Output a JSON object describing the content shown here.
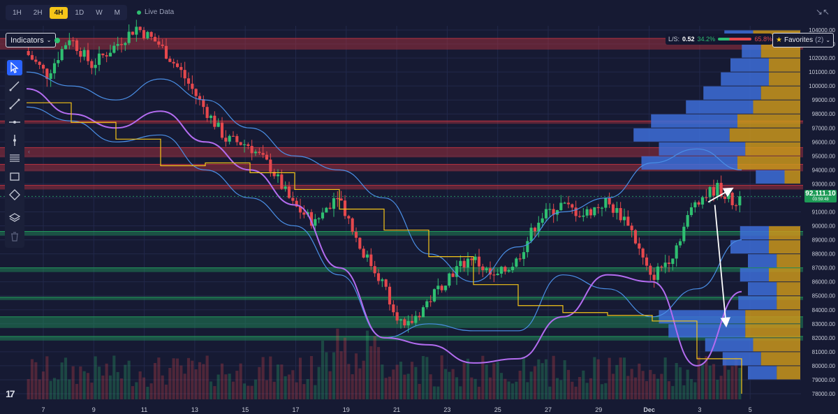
{
  "timeframes": {
    "items": [
      {
        "label": "1H"
      },
      {
        "label": "2H"
      },
      {
        "label": "4H",
        "active": true
      },
      {
        "label": "1D"
      },
      {
        "label": "W"
      },
      {
        "label": "M"
      }
    ],
    "live_label": "Live Data"
  },
  "indicators_label": "Indicators",
  "favorites": {
    "label": "Favorites",
    "count": "(2)"
  },
  "long_short": {
    "label": "L/S:",
    "ratio": "0.52",
    "long_pct": "34.2%",
    "short_pct": "65.8%"
  },
  "price_tag": {
    "price": "92,111.10",
    "timer": "03:59:48"
  },
  "tools": [
    "cursor-icon",
    "trendline-icon",
    "ray-icon",
    "horizontal-line-icon",
    "vertical-line-icon",
    "fib-icon",
    "rectangle-icon",
    "measure-icon",
    "layers-icon",
    "trash-icon"
  ],
  "colors": {
    "background": "#161a33",
    "up": "#2fbf71",
    "down": "#e5484d",
    "bollinger": "#4a8fe6",
    "ma": "#b36cf0",
    "step": "#f5c518",
    "profile_blue": "#3d6fd9",
    "profile_gold": "#c9961c"
  },
  "chart_data": {
    "type": "candlestick",
    "x_ticks": [
      "7",
      "9",
      "11",
      "13",
      "15",
      "17",
      "19",
      "21",
      "23",
      "25",
      "27",
      "29",
      "Dec",
      "3",
      "5"
    ],
    "y_ticks": [
      "104000.00",
      "103000.00",
      "102000.00",
      "101000.00",
      "100000.00",
      "99000.00",
      "98000.00",
      "97000.00",
      "96000.00",
      "95000.00",
      "94000.00",
      "93000.00",
      "92000.00",
      "91000.00",
      "90000.00",
      "89000.00",
      "88000.00",
      "87000.00",
      "86000.00",
      "85000.00",
      "84000.00",
      "83000.00",
      "82000.00",
      "81000.00",
      "80000.00",
      "79000.00",
      "78000.00"
    ],
    "ylim": [
      77600,
      104300
    ],
    "last_price": 92111.1,
    "close_path": [
      102500,
      100800,
      103500,
      101500,
      102800,
      104200,
      103000,
      101000,
      98500,
      96200,
      95800,
      94200,
      91500,
      90200,
      92400,
      88500,
      86000,
      82500,
      84500,
      86500,
      87800,
      86200,
      87500,
      90500,
      91500,
      90800,
      91700,
      90300,
      86200,
      88000,
      91800,
      92700,
      91200
    ],
    "candles_per_segment": 6,
    "zones": [
      {
        "from": 102600,
        "to": 103400,
        "kind": "resistance"
      },
      {
        "from": 97300,
        "to": 97500,
        "kind": "resistance"
      },
      {
        "from": 94900,
        "to": 95600,
        "kind": "resistance"
      },
      {
        "from": 93900,
        "to": 94400,
        "kind": "resistance"
      },
      {
        "from": 92600,
        "to": 92900,
        "kind": "resistance"
      },
      {
        "from": 89300,
        "to": 89600,
        "kind": "support"
      },
      {
        "from": 86700,
        "to": 87000,
        "kind": "support"
      },
      {
        "from": 84700,
        "to": 84900,
        "kind": "support"
      },
      {
        "from": 82700,
        "to": 83500,
        "kind": "support"
      },
      {
        "from": 81800,
        "to": 82100,
        "kind": "support"
      }
    ],
    "bollinger_upper": [
      [
        0,
        101000
      ],
      [
        2,
        100000
      ],
      [
        4,
        99000
      ],
      [
        6,
        100500
      ],
      [
        8,
        99000
      ],
      [
        10,
        97000
      ],
      [
        12,
        95000
      ],
      [
        14,
        94000
      ],
      [
        16,
        92000
      ],
      [
        18,
        88000
      ],
      [
        20,
        86000
      ],
      [
        22,
        88500
      ],
      [
        24,
        91000
      ],
      [
        26,
        92000
      ],
      [
        28,
        94500
      ],
      [
        30,
        95500
      ],
      [
        32,
        94000
      ]
    ],
    "bollinger_lower": [
      [
        0,
        98500
      ],
      [
        2,
        97500
      ],
      [
        4,
        96000
      ],
      [
        6,
        96500
      ],
      [
        8,
        94000
      ],
      [
        10,
        92000
      ],
      [
        12,
        90000
      ],
      [
        14,
        86500
      ],
      [
        16,
        82000
      ],
      [
        18,
        83000
      ],
      [
        20,
        82500
      ],
      [
        22,
        82500
      ],
      [
        24,
        86500
      ],
      [
        26,
        85500
      ],
      [
        28,
        83500
      ],
      [
        30,
        85500
      ],
      [
        32,
        89000
      ]
    ],
    "moving_average": [
      [
        0,
        99800
      ],
      [
        2,
        98000
      ],
      [
        4,
        97000
      ],
      [
        6,
        98200
      ],
      [
        8,
        96000
      ],
      [
        10,
        94000
      ],
      [
        12,
        91500
      ],
      [
        14,
        87000
      ],
      [
        16,
        82000
      ],
      [
        18,
        81500
      ],
      [
        20,
        80200
      ],
      [
        22,
        80500
      ],
      [
        24,
        83500
      ],
      [
        26,
        86500
      ],
      [
        28,
        86000
      ],
      [
        30,
        80000
      ],
      [
        32,
        85300
      ]
    ],
    "step_line": [
      [
        0,
        98800
      ],
      [
        2,
        97400
      ],
      [
        4,
        96200
      ],
      [
        6,
        94300
      ],
      [
        8,
        94500
      ],
      [
        10,
        93800
      ],
      [
        12,
        92600
      ],
      [
        14,
        91200
      ],
      [
        16,
        89700
      ],
      [
        18,
        87800
      ],
      [
        20,
        85800
      ],
      [
        22,
        84300
      ],
      [
        24,
        83800
      ],
      [
        26,
        83600
      ],
      [
        28,
        83200
      ],
      [
        30,
        80500
      ],
      [
        32,
        78000
      ]
    ],
    "volume_profile": [
      {
        "price": 103500,
        "blue": 0.3,
        "gold": 0.6
      },
      {
        "price": 102500,
        "blue": 0.2,
        "gold": 0.5
      },
      {
        "price": 101500,
        "blue": 0.4,
        "gold": 0.4
      },
      {
        "price": 100500,
        "blue": 0.5,
        "gold": 0.4
      },
      {
        "price": 99500,
        "blue": 0.6,
        "gold": 0.5
      },
      {
        "price": 98500,
        "blue": 0.7,
        "gold": 0.6
      },
      {
        "price": 97500,
        "blue": 0.9,
        "gold": 0.8
      },
      {
        "price": 96500,
        "blue": 1.0,
        "gold": 0.9
      },
      {
        "price": 95500,
        "blue": 0.9,
        "gold": 0.7
      },
      {
        "price": 94500,
        "blue": 1.0,
        "gold": 0.8
      },
      {
        "price": 93500,
        "blue": 0.3,
        "gold": 0.2
      },
      {
        "price": 89500,
        "blue": 0.3,
        "gold": 0.4
      },
      {
        "price": 88500,
        "blue": 0.4,
        "gold": 0.4
      },
      {
        "price": 87500,
        "blue": 0.3,
        "gold": 0.3
      },
      {
        "price": 86500,
        "blue": 0.3,
        "gold": 0.4
      },
      {
        "price": 85500,
        "blue": 0.3,
        "gold": 0.3
      },
      {
        "price": 84500,
        "blue": 0.4,
        "gold": 0.3
      },
      {
        "price": 83500,
        "blue": 0.9,
        "gold": 0.7
      },
      {
        "price": 82500,
        "blue": 0.8,
        "gold": 0.7
      },
      {
        "price": 81500,
        "blue": 0.5,
        "gold": 0.6
      },
      {
        "price": 80500,
        "blue": 0.4,
        "gold": 0.5
      },
      {
        "price": 79500,
        "blue": 0.3,
        "gold": 0.3
      }
    ],
    "arrows": [
      {
        "from": [
          30.5,
          91700
        ],
        "to": [
          31.5,
          92600
        ]
      },
      {
        "from": [
          30.8,
          91500
        ],
        "to": [
          31.3,
          83000
        ]
      }
    ],
    "volume_visible": true
  }
}
